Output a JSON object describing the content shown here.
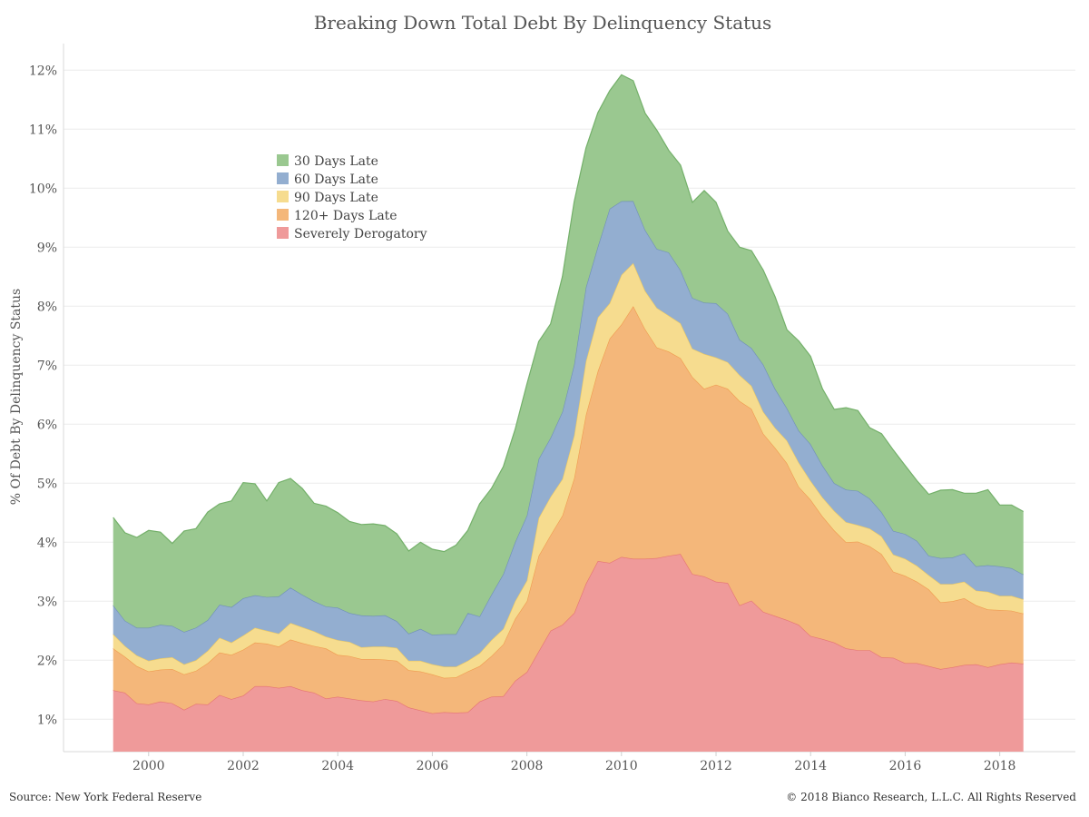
{
  "chart_data": {
    "type": "area",
    "stacked": true,
    "title": "Breaking Down Total Debt By Delinquency Status",
    "ylabel": "% Of Debt By Delinquency Status",
    "xlabel": "",
    "xlim": [
      1998.2,
      2019.6
    ],
    "ylim": [
      0.45,
      12.45
    ],
    "x_ticks": [
      "2000",
      "2002",
      "2004",
      "2006",
      "2008",
      "2010",
      "2012",
      "2014",
      "2016",
      "2018"
    ],
    "y_ticks": [
      "1%",
      "2%",
      "3%",
      "4%",
      "5%",
      "6%",
      "7%",
      "8%",
      "9%",
      "10%",
      "11%",
      "12%"
    ],
    "grid": "horizontal",
    "legend_position": "upper-left",
    "x": [
      1999.25,
      1999.5,
      1999.75,
      2000.0,
      2000.25,
      2000.5,
      2000.75,
      2001.0,
      2001.25,
      2001.5,
      2001.75,
      2002.0,
      2002.25,
      2002.5,
      2002.75,
      2003.0,
      2003.25,
      2003.5,
      2003.75,
      2004.0,
      2004.25,
      2004.5,
      2004.75,
      2005.0,
      2005.25,
      2005.5,
      2005.75,
      2006.0,
      2006.25,
      2006.5,
      2006.75,
      2007.0,
      2007.25,
      2007.5,
      2007.75,
      2008.0,
      2008.25,
      2008.5,
      2008.75,
      2009.0,
      2009.25,
      2009.5,
      2009.75,
      2010.0,
      2010.25,
      2010.5,
      2010.75,
      2011.0,
      2011.25,
      2011.5,
      2011.75,
      2012.0,
      2012.25,
      2012.5,
      2012.75,
      2013.0,
      2013.25,
      2013.5,
      2013.75,
      2014.0,
      2014.25,
      2014.5,
      2014.75,
      2015.0,
      2015.25,
      2015.5,
      2015.75,
      2016.0,
      2016.25,
      2016.5,
      2016.75,
      2017.0,
      2017.25,
      2017.5,
      2017.75,
      2018.0,
      2018.25,
      2018.5
    ],
    "series": [
      {
        "name": "Severely Derogatory",
        "color": "#ef9a9a",
        "stroke": "#e57373",
        "values": [
          1.49,
          1.45,
          1.27,
          1.25,
          1.3,
          1.27,
          1.16,
          1.26,
          1.25,
          1.41,
          1.34,
          1.4,
          1.56,
          1.56,
          1.53,
          1.56,
          1.49,
          1.45,
          1.35,
          1.38,
          1.35,
          1.32,
          1.3,
          1.34,
          1.31,
          1.2,
          1.15,
          1.1,
          1.12,
          1.11,
          1.12,
          1.3,
          1.38,
          1.39,
          1.65,
          1.8,
          2.15,
          2.5,
          2.6,
          2.8,
          3.3,
          3.68,
          3.65,
          3.75,
          3.72,
          3.72,
          3.73,
          3.77,
          3.8,
          3.46,
          3.42,
          3.33,
          3.31,
          2.93,
          3.01,
          2.82,
          2.75,
          2.68,
          2.6,
          2.41,
          2.36,
          2.3,
          2.2,
          2.17,
          2.17,
          2.05,
          2.04,
          1.95,
          1.95,
          1.9,
          1.85,
          1.88,
          1.92,
          1.93,
          1.88,
          1.93,
          1.96,
          1.94
        ]
      },
      {
        "name": "120+ Days Late",
        "color": "#f4b77a",
        "stroke": "#ef9b4f",
        "values": [
          0.71,
          0.61,
          0.63,
          0.56,
          0.54,
          0.58,
          0.6,
          0.56,
          0.7,
          0.72,
          0.75,
          0.78,
          0.74,
          0.72,
          0.7,
          0.79,
          0.8,
          0.79,
          0.85,
          0.71,
          0.72,
          0.7,
          0.72,
          0.67,
          0.68,
          0.63,
          0.66,
          0.66,
          0.58,
          0.6,
          0.69,
          0.6,
          0.69,
          0.88,
          1.05,
          1.2,
          1.62,
          1.62,
          1.85,
          2.28,
          2.86,
          3.22,
          3.8,
          3.94,
          4.28,
          3.89,
          3.57,
          3.46,
          3.32,
          3.34,
          3.18,
          3.34,
          3.29,
          3.46,
          3.25,
          3.02,
          2.85,
          2.66,
          2.34,
          2.31,
          2.08,
          1.9,
          1.8,
          1.84,
          1.76,
          1.75,
          1.46,
          1.48,
          1.38,
          1.3,
          1.13,
          1.12,
          1.13,
          1.0,
          0.98,
          0.92,
          0.88,
          0.85
        ]
      },
      {
        "name": "90 Days Late",
        "color": "#f6dc8f",
        "stroke": "#ecc860",
        "values": [
          0.24,
          0.18,
          0.18,
          0.18,
          0.19,
          0.2,
          0.17,
          0.18,
          0.21,
          0.25,
          0.21,
          0.24,
          0.25,
          0.22,
          0.22,
          0.28,
          0.27,
          0.25,
          0.2,
          0.25,
          0.24,
          0.2,
          0.21,
          0.22,
          0.22,
          0.16,
          0.18,
          0.17,
          0.19,
          0.18,
          0.18,
          0.22,
          0.27,
          0.26,
          0.3,
          0.35,
          0.64,
          0.65,
          0.62,
          0.73,
          0.91,
          0.91,
          0.6,
          0.84,
          0.73,
          0.65,
          0.67,
          0.61,
          0.59,
          0.48,
          0.59,
          0.46,
          0.45,
          0.44,
          0.39,
          0.37,
          0.34,
          0.38,
          0.41,
          0.32,
          0.32,
          0.33,
          0.34,
          0.28,
          0.3,
          0.3,
          0.29,
          0.29,
          0.27,
          0.24,
          0.31,
          0.29,
          0.28,
          0.25,
          0.3,
          0.24,
          0.25,
          0.24
        ]
      },
      {
        "name": "60 Days Late",
        "color": "#93aed0",
        "stroke": "#6f8fb8",
        "values": [
          0.49,
          0.43,
          0.47,
          0.56,
          0.57,
          0.53,
          0.55,
          0.55,
          0.52,
          0.56,
          0.6,
          0.63,
          0.55,
          0.57,
          0.63,
          0.6,
          0.55,
          0.51,
          0.51,
          0.55,
          0.49,
          0.54,
          0.52,
          0.53,
          0.45,
          0.46,
          0.54,
          0.5,
          0.55,
          0.55,
          0.81,
          0.62,
          0.77,
          0.93,
          1.0,
          1.1,
          1.0,
          1.0,
          1.14,
          1.2,
          1.25,
          1.2,
          1.6,
          1.25,
          1.05,
          1.03,
          1.0,
          1.07,
          0.9,
          0.86,
          0.87,
          0.92,
          0.82,
          0.6,
          0.64,
          0.8,
          0.66,
          0.55,
          0.54,
          0.62,
          0.54,
          0.47,
          0.55,
          0.58,
          0.51,
          0.41,
          0.4,
          0.42,
          0.42,
          0.33,
          0.44,
          0.45,
          0.48,
          0.41,
          0.45,
          0.5,
          0.47,
          0.42
        ]
      },
      {
        "name": "30 Days Late",
        "color": "#9ac890",
        "stroke": "#74b06a",
        "values": [
          1.49,
          1.49,
          1.53,
          1.65,
          1.57,
          1.4,
          1.71,
          1.68,
          1.83,
          1.71,
          1.8,
          1.96,
          1.89,
          1.63,
          1.93,
          1.85,
          1.8,
          1.66,
          1.7,
          1.61,
          1.55,
          1.54,
          1.56,
          1.52,
          1.48,
          1.4,
          1.47,
          1.45,
          1.4,
          1.51,
          1.4,
          1.91,
          1.8,
          1.82,
          1.91,
          2.23,
          1.99,
          1.93,
          2.29,
          2.76,
          2.36,
          2.27,
          2.0,
          2.14,
          2.04,
          1.98,
          2.01,
          1.73,
          1.78,
          1.62,
          1.9,
          1.71,
          1.4,
          1.57,
          1.65,
          1.6,
          1.56,
          1.33,
          1.52,
          1.49,
          1.3,
          1.25,
          1.39,
          1.36,
          1.2,
          1.33,
          1.37,
          1.16,
          1.02,
          1.04,
          1.15,
          1.15,
          1.02,
          1.24,
          1.28,
          1.04,
          1.07,
          1.07
        ]
      }
    ]
  },
  "legend": {
    "items": [
      {
        "label": "30 Days Late",
        "color": "#9ac890"
      },
      {
        "label": "60 Days Late",
        "color": "#93aed0"
      },
      {
        "label": "90 Days Late",
        "color": "#f6dc8f"
      },
      {
        "label": "120+ Days Late",
        "color": "#f4b77a"
      },
      {
        "label": "Severely Derogatory",
        "color": "#ef9a9a"
      }
    ]
  },
  "footer": {
    "source": "Source: New York Federal Reserve",
    "copyright": "© 2018 Bianco Research, L.L.C. All Rights Reserved"
  }
}
